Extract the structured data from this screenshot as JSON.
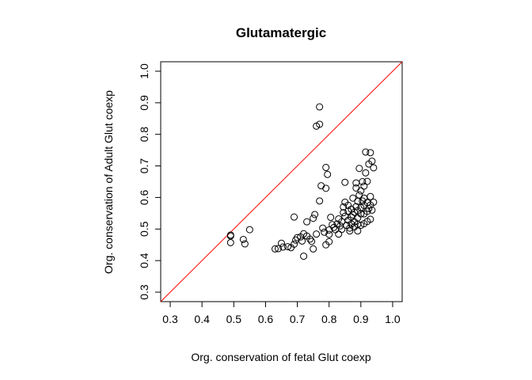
{
  "chart_data": {
    "type": "scatter",
    "title": "Glutamatergic",
    "xlabel": "Org. conservation of fetal Glut coexp",
    "ylabel": "Org. conservation of Adult Glut coexp",
    "xlim": [
      0.27,
      1.03
    ],
    "ylim": [
      0.27,
      1.03
    ],
    "xticks": [
      "0.3",
      "0.4",
      "0.5",
      "0.6",
      "0.7",
      "0.8",
      "0.9",
      "1.0"
    ],
    "yticks": [
      "0.3",
      "0.4",
      "0.5",
      "0.6",
      "0.7",
      "0.8",
      "0.9",
      "1.0"
    ],
    "grid": false,
    "reference_line": {
      "type": "identity",
      "color": "#ff0000"
    },
    "marker_color": "#000000",
    "points": [
      [
        0.49,
        0.478
      ],
      [
        0.49,
        0.481
      ],
      [
        0.49,
        0.457
      ],
      [
        0.53,
        0.467
      ],
      [
        0.535,
        0.453
      ],
      [
        0.55,
        0.498
      ],
      [
        0.63,
        0.437
      ],
      [
        0.64,
        0.438
      ],
      [
        0.65,
        0.455
      ],
      [
        0.655,
        0.443
      ],
      [
        0.67,
        0.444
      ],
      [
        0.68,
        0.441
      ],
      [
        0.69,
        0.538
      ],
      [
        0.69,
        0.452
      ],
      [
        0.695,
        0.465
      ],
      [
        0.7,
        0.473
      ],
      [
        0.71,
        0.475
      ],
      [
        0.715,
        0.462
      ],
      [
        0.72,
        0.414
      ],
      [
        0.72,
        0.485
      ],
      [
        0.73,
        0.478
      ],
      [
        0.73,
        0.523
      ],
      [
        0.74,
        0.468
      ],
      [
        0.745,
        0.461
      ],
      [
        0.75,
        0.437
      ],
      [
        0.75,
        0.534
      ],
      [
        0.755,
        0.546
      ],
      [
        0.76,
        0.484
      ],
      [
        0.76,
        0.826
      ],
      [
        0.77,
        0.887
      ],
      [
        0.77,
        0.832
      ],
      [
        0.77,
        0.589
      ],
      [
        0.775,
        0.637
      ],
      [
        0.78,
        0.503
      ],
      [
        0.785,
        0.49
      ],
      [
        0.79,
        0.695
      ],
      [
        0.79,
        0.629
      ],
      [
        0.795,
        0.673
      ],
      [
        0.79,
        0.45
      ],
      [
        0.8,
        0.46
      ],
      [
        0.8,
        0.483
      ],
      [
        0.8,
        0.497
      ],
      [
        0.805,
        0.537
      ],
      [
        0.81,
        0.514
      ],
      [
        0.815,
        0.505
      ],
      [
        0.82,
        0.498
      ],
      [
        0.825,
        0.516
      ],
      [
        0.83,
        0.484
      ],
      [
        0.83,
        0.532
      ],
      [
        0.835,
        0.51
      ],
      [
        0.84,
        0.499
      ],
      [
        0.84,
        0.523
      ],
      [
        0.845,
        0.552
      ],
      [
        0.845,
        0.57
      ],
      [
        0.85,
        0.54
      ],
      [
        0.85,
        0.585
      ],
      [
        0.85,
        0.648
      ],
      [
        0.855,
        0.512
      ],
      [
        0.86,
        0.528
      ],
      [
        0.86,
        0.557
      ],
      [
        0.86,
        0.575
      ],
      [
        0.865,
        0.494
      ],
      [
        0.865,
        0.503
      ],
      [
        0.87,
        0.516
      ],
      [
        0.87,
        0.538
      ],
      [
        0.87,
        0.563
      ],
      [
        0.875,
        0.545
      ],
      [
        0.875,
        0.598
      ],
      [
        0.88,
        0.507
      ],
      [
        0.88,
        0.523
      ],
      [
        0.88,
        0.553
      ],
      [
        0.885,
        0.571
      ],
      [
        0.885,
        0.63
      ],
      [
        0.885,
        0.646
      ],
      [
        0.89,
        0.494
      ],
      [
        0.89,
        0.515
      ],
      [
        0.89,
        0.535
      ],
      [
        0.89,
        0.558
      ],
      [
        0.89,
        0.588
      ],
      [
        0.895,
        0.608
      ],
      [
        0.895,
        0.692
      ],
      [
        0.9,
        0.512
      ],
      [
        0.9,
        0.548
      ],
      [
        0.9,
        0.568
      ],
      [
        0.9,
        0.621
      ],
      [
        0.905,
        0.589
      ],
      [
        0.905,
        0.65
      ],
      [
        0.91,
        0.517
      ],
      [
        0.91,
        0.548
      ],
      [
        0.91,
        0.575
      ],
      [
        0.91,
        0.598
      ],
      [
        0.91,
        0.636
      ],
      [
        0.915,
        0.744
      ],
      [
        0.915,
        0.678
      ],
      [
        0.92,
        0.524
      ],
      [
        0.92,
        0.556
      ],
      [
        0.92,
        0.584
      ],
      [
        0.92,
        0.651
      ],
      [
        0.925,
        0.706
      ],
      [
        0.925,
        0.565
      ],
      [
        0.93,
        0.742
      ],
      [
        0.93,
        0.531
      ],
      [
        0.93,
        0.576
      ],
      [
        0.93,
        0.603
      ],
      [
        0.935,
        0.715
      ],
      [
        0.935,
        0.56
      ],
      [
        0.94,
        0.694
      ],
      [
        0.94,
        0.585
      ]
    ]
  }
}
